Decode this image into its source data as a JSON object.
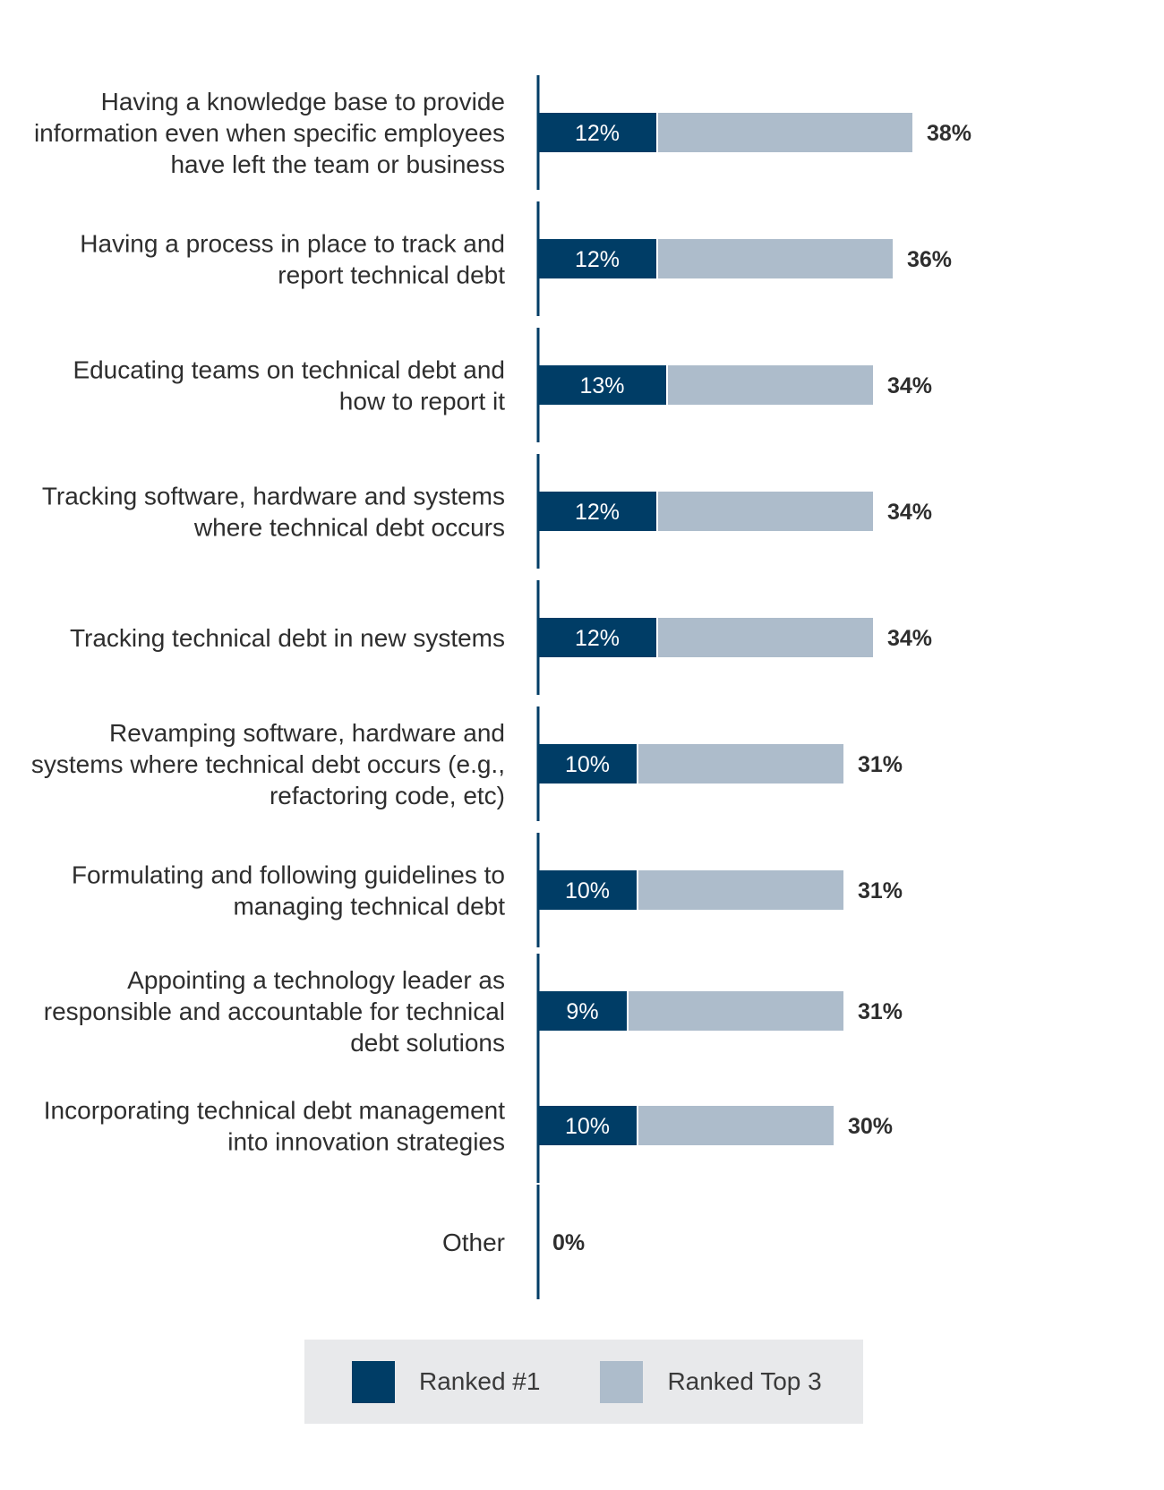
{
  "chart_data": {
    "type": "bar",
    "orientation": "horizontal",
    "stacked": false,
    "categories": [
      "Having a knowledge base to provide information even when specific employees have left the team or business",
      "Having a process in place to track and report technical debt",
      "Educating teams on technical debt and how to report it",
      "Tracking software, hardware and systems where technical debt occurs",
      "Tracking technical debt in new systems",
      "Revamping software, hardware and systems where technical debt occurs (e.g., refactoring code, etc)",
      "Formulating and following guidelines to managing technical debt",
      "Appointing a technology leader as responsible and accountable for technical debt solutions",
      "Incorporating technical debt management into innovation strategies",
      "Other"
    ],
    "category_lines": [
      [
        "Having a knowledge base to provide",
        "information even when specific employees",
        "have left the team or business"
      ],
      [
        "Having a process in place to track and",
        "report technical debt"
      ],
      [
        "Educating teams on technical debt and",
        "how to report it"
      ],
      [
        "Tracking software, hardware and systems",
        "where technical debt occurs"
      ],
      [
        "Tracking technical debt in new systems"
      ],
      [
        "Revamping software, hardware and",
        "systems where technical debt occurs (e.g.,",
        "refactoring code, etc)"
      ],
      [
        "Formulating and following guidelines to",
        "managing technical debt"
      ],
      [
        "Appointing a technology leader as",
        "responsible and accountable for technical",
        "debt solutions"
      ],
      [
        "Incorporating technical debt management",
        "into innovation strategies"
      ],
      [
        "Other"
      ]
    ],
    "series": [
      {
        "name": "Ranked #1",
        "color": "#003d66",
        "values": [
          12,
          12,
          13,
          12,
          12,
          10,
          10,
          9,
          10,
          0
        ],
        "labels": [
          "12%",
          "12%",
          "13%",
          "12%",
          "12%",
          "10%",
          "10%",
          "9%",
          "10%",
          ""
        ]
      },
      {
        "name": "Ranked Top 3",
        "color": "#adbccb",
        "values": [
          38,
          36,
          34,
          34,
          34,
          31,
          31,
          31,
          30,
          0
        ],
        "labels": [
          "38%",
          "36%",
          "34%",
          "34%",
          "34%",
          "31%",
          "31%",
          "31%",
          "30%",
          "0%"
        ]
      }
    ],
    "xlim": [
      0,
      40
    ],
    "grid": false,
    "legend_position": "bottom",
    "axis_color": "#003d66"
  }
}
